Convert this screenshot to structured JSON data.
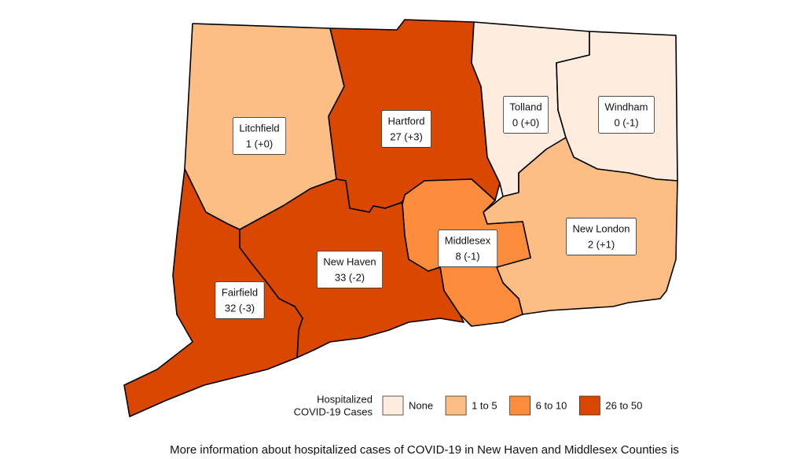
{
  "map": {
    "counties": [
      {
        "name": "Litchfield",
        "label": "1 (+0)",
        "color": "#fdbe85"
      },
      {
        "name": "Hartford",
        "label": "27 (+3)",
        "color": "#d94701"
      },
      {
        "name": "Tolland",
        "label": "0 (+0)",
        "color": "#feeddf"
      },
      {
        "name": "Windham",
        "label": "0 (-1)",
        "color": "#feeddf"
      },
      {
        "name": "New London",
        "label": "2 (+1)",
        "color": "#fdbe85"
      },
      {
        "name": "Middlesex",
        "label": "8 (-1)",
        "color": "#fd8d3c"
      },
      {
        "name": "New Haven",
        "label": "33 (-2)",
        "color": "#d94701"
      },
      {
        "name": "Fairfield",
        "label": "32 (-3)",
        "color": "#d94701"
      }
    ],
    "legend": {
      "title": [
        "Hospitalized",
        "COVID-19 Cases"
      ],
      "items": [
        {
          "label": "None",
          "color": "#feeddf"
        },
        {
          "label": "1 to 5",
          "color": "#fdbe85"
        },
        {
          "label": "6 to 10",
          "color": "#fd8d3c"
        },
        {
          "label": "26 to 50",
          "color": "#d94701"
        }
      ]
    },
    "caption": "More information about hospitalized cases of COVID-19 in New Haven and Middlesex Counties is"
  }
}
